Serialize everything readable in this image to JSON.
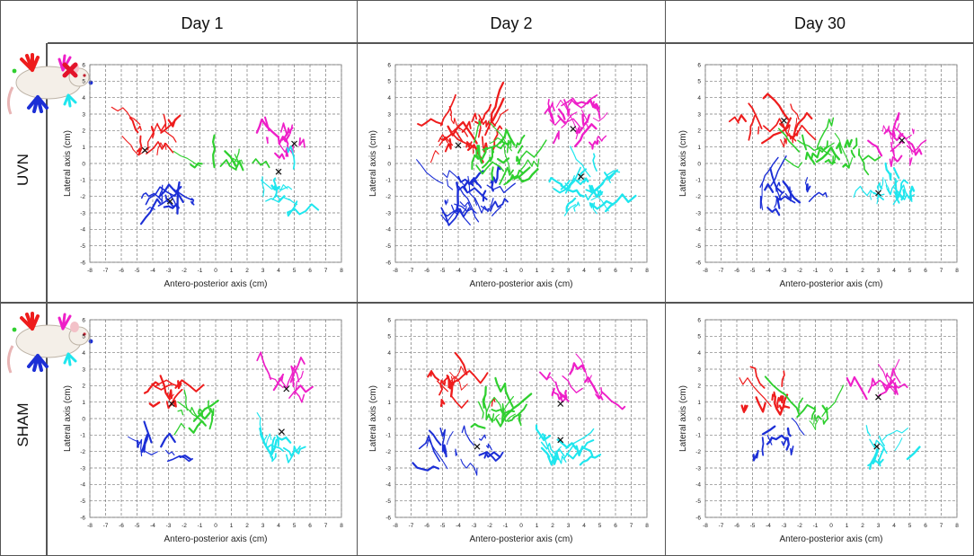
{
  "columns": [
    "Day 1",
    "Day 2",
    "Day 30"
  ],
  "rows": [
    "UVN",
    "SHAM"
  ],
  "colors": {
    "left_forepaw": "#ee1c1c",
    "right_forepaw": "#ee1fc8",
    "left_hindpaw": "#1c2fd6",
    "right_hindpaw": "#1fe6ee",
    "tail": "#2fcf2f",
    "lesion_marker": "#e3122a",
    "mean_marker": "#111111"
  },
  "icons": {
    "uvn_rat": "rat-with-lesion-cross-icon",
    "sham_rat": "rat-icon"
  },
  "chart_data": [
    {
      "id": "uvn-day1",
      "type": "scatter",
      "xlabel": "Antero-posterior axis (cm)",
      "ylabel": "Lateral axis (cm)",
      "xlim": [
        -8,
        8
      ],
      "ylim": [
        -6,
        6
      ],
      "xticks": [
        -8,
        -7,
        -6,
        -5,
        -4,
        -3,
        -2,
        -1,
        0,
        1,
        2,
        3,
        4,
        5,
        6,
        7,
        8
      ],
      "yticks": [
        -6,
        -5,
        -4,
        -3,
        -2,
        -1,
        0,
        1,
        2,
        3,
        4,
        5,
        6
      ],
      "grid": true,
      "series": [
        {
          "color": "#ee1c1c",
          "cx": -3.8,
          "cy": 1.6,
          "sx": 1.3,
          "sy": 1.1,
          "n": 14,
          "mean": [
            -4.5,
            0.8
          ]
        },
        {
          "color": "#ee1fc8",
          "cx": 4.2,
          "cy": 1.4,
          "sx": 1.2,
          "sy": 1.0,
          "n": 12,
          "mean": [
            5.0,
            1.2
          ]
        },
        {
          "color": "#1c2fd6",
          "cx": -3.0,
          "cy": -2.3,
          "sx": 1.5,
          "sy": 0.9,
          "n": 14,
          "mean": [
            -2.9,
            -2.3
          ]
        },
        {
          "color": "#1fe6ee",
          "cx": 4.0,
          "cy": -1.6,
          "sx": 1.2,
          "sy": 1.4,
          "n": 12,
          "mean": [
            4.0,
            -0.5
          ]
        },
        {
          "color": "#2fcf2f",
          "cx": 0.5,
          "cy": -0.2,
          "sx": 2.2,
          "sy": 0.3,
          "n": 10
        }
      ]
    },
    {
      "id": "uvn-day2",
      "type": "scatter",
      "xlabel": "Antero-posterior axis (cm)",
      "ylabel": "Lateral axis (cm)",
      "xlim": [
        -8,
        8
      ],
      "ylim": [
        -6,
        6
      ],
      "xticks": [
        -8,
        -7,
        -6,
        -5,
        -4,
        -3,
        -2,
        -1,
        0,
        1,
        2,
        3,
        4,
        5,
        6,
        7,
        8
      ],
      "yticks": [
        -6,
        -5,
        -4,
        -3,
        -2,
        -1,
        0,
        1,
        2,
        3,
        4,
        5,
        6
      ],
      "grid": true,
      "series": [
        {
          "color": "#ee1c1c",
          "cx": -3.5,
          "cy": 1.8,
          "sx": 1.8,
          "sy": 1.3,
          "n": 26,
          "mean": [
            -4.0,
            1.1
          ]
        },
        {
          "color": "#ee1fc8",
          "cx": 3.5,
          "cy": 2.3,
          "sx": 1.6,
          "sy": 1.4,
          "n": 24,
          "mean": [
            3.3,
            2.1
          ]
        },
        {
          "color": "#1c2fd6",
          "cx": -3.5,
          "cy": -2.3,
          "sx": 1.8,
          "sy": 1.3,
          "n": 26
        },
        {
          "color": "#1fe6ee",
          "cx": 4.0,
          "cy": -1.8,
          "sx": 1.6,
          "sy": 1.4,
          "n": 24,
          "mean": [
            3.8,
            -0.8
          ]
        },
        {
          "color": "#2fcf2f",
          "cx": -1.5,
          "cy": 0.0,
          "sx": 1.5,
          "sy": 1.3,
          "n": 26
        }
      ]
    },
    {
      "id": "uvn-day30",
      "type": "scatter",
      "xlabel": "Antero-posterior axis (cm)",
      "ylabel": "Lateral axis (cm)",
      "xlim": [
        -8,
        8
      ],
      "ylim": [
        -6,
        6
      ],
      "xticks": [
        -8,
        -7,
        -6,
        -5,
        -4,
        -3,
        -2,
        -1,
        0,
        1,
        2,
        3,
        4,
        5,
        6,
        7,
        8
      ],
      "yticks": [
        -6,
        -5,
        -4,
        -3,
        -2,
        -1,
        0,
        1,
        2,
        3,
        4,
        5,
        6
      ],
      "grid": true,
      "series": [
        {
          "color": "#ee1c1c",
          "cx": -4.0,
          "cy": 2.0,
          "sx": 2.0,
          "sy": 0.8,
          "n": 16,
          "mean": [
            -3.0,
            2.6
          ]
        },
        {
          "color": "#ee1fc8",
          "cx": 4.2,
          "cy": 1.2,
          "sx": 2.2,
          "sy": 0.9,
          "n": 16,
          "mean": [
            4.5,
            1.4
          ]
        },
        {
          "color": "#1c2fd6",
          "cx": -3.0,
          "cy": -2.0,
          "sx": 2.2,
          "sy": 0.9,
          "n": 18
        },
        {
          "color": "#1fe6ee",
          "cx": 4.0,
          "cy": -1.6,
          "sx": 1.6,
          "sy": 1.0,
          "n": 18,
          "mean": [
            3.0,
            -1.8
          ]
        },
        {
          "color": "#2fcf2f",
          "cx": 0.0,
          "cy": 0.4,
          "sx": 2.2,
          "sy": 0.6,
          "n": 20
        }
      ]
    },
    {
      "id": "sham-day1",
      "type": "scatter",
      "xlabel": "Antero-posterior axis (cm)",
      "ylabel": "Lateral axis (cm)",
      "xlim": [
        -8,
        8
      ],
      "ylim": [
        -6,
        6
      ],
      "xticks": [
        -8,
        -7,
        -6,
        -5,
        -4,
        -3,
        -2,
        -1,
        0,
        1,
        2,
        3,
        4,
        5,
        6,
        7,
        8
      ],
      "yticks": [
        -6,
        -5,
        -4,
        -3,
        -2,
        -1,
        0,
        1,
        2,
        3,
        4,
        5,
        6
      ],
      "grid": true,
      "series": [
        {
          "color": "#ee1c1c",
          "cx": -3.3,
          "cy": 1.5,
          "sx": 1.3,
          "sy": 0.8,
          "n": 10,
          "mean": [
            -2.8,
            0.9
          ]
        },
        {
          "color": "#ee1fc8",
          "cx": 4.3,
          "cy": 1.9,
          "sx": 1.0,
          "sy": 0.8,
          "n": 10,
          "mean": [
            4.5,
            1.8
          ]
        },
        {
          "color": "#1c2fd6",
          "cx": -3.8,
          "cy": -2.0,
          "sx": 1.6,
          "sy": 0.6,
          "n": 10
        },
        {
          "color": "#1fe6ee",
          "cx": 3.3,
          "cy": -1.6,
          "sx": 1.5,
          "sy": 0.8,
          "n": 10,
          "mean": [
            4.2,
            -0.8
          ]
        },
        {
          "color": "#2fcf2f",
          "cx": -1.2,
          "cy": 0.0,
          "sx": 1.2,
          "sy": 0.7,
          "n": 12
        }
      ]
    },
    {
      "id": "sham-day2",
      "type": "scatter",
      "xlabel": "Antero-posterior axis (cm)",
      "ylabel": "Lateral axis (cm)",
      "xlim": [
        -8,
        8
      ],
      "ylim": [
        -6,
        6
      ],
      "xticks": [
        -8,
        -7,
        -6,
        -5,
        -4,
        -3,
        -2,
        -1,
        0,
        1,
        2,
        3,
        4,
        5,
        6,
        7,
        8
      ],
      "yticks": [
        -6,
        -5,
        -4,
        -3,
        -2,
        -1,
        0,
        1,
        2,
        3,
        4,
        5,
        6
      ],
      "grid": true,
      "series": [
        {
          "color": "#ee1c1c",
          "cx": -3.5,
          "cy": 1.8,
          "sx": 1.8,
          "sy": 1.1,
          "n": 14
        },
        {
          "color": "#ee1fc8",
          "cx": 3.5,
          "cy": 1.8,
          "sx": 1.8,
          "sy": 1.1,
          "n": 14,
          "mean": [
            2.5,
            0.9
          ]
        },
        {
          "color": "#1c2fd6",
          "cx": -3.8,
          "cy": -2.0,
          "sx": 1.8,
          "sy": 1.1,
          "n": 14,
          "mean": [
            -2.8,
            -1.7
          ]
        },
        {
          "color": "#1fe6ee",
          "cx": 3.0,
          "cy": -2.0,
          "sx": 1.6,
          "sy": 1.1,
          "n": 14,
          "mean": [
            2.5,
            -1.3
          ]
        },
        {
          "color": "#2fcf2f",
          "cx": -1.3,
          "cy": 0.1,
          "sx": 1.3,
          "sy": 0.7,
          "n": 14
        }
      ]
    },
    {
      "id": "sham-day30",
      "type": "scatter",
      "xlabel": "Antero-posterior axis (cm)",
      "ylabel": "Lateral axis (cm)",
      "xlim": [
        -8,
        8
      ],
      "ylim": [
        -6,
        6
      ],
      "xticks": [
        -8,
        -7,
        -6,
        -5,
        -4,
        -3,
        -2,
        -1,
        0,
        1,
        2,
        3,
        4,
        5,
        6,
        7,
        8
      ],
      "yticks": [
        -6,
        -5,
        -4,
        -3,
        -2,
        -1,
        0,
        1,
        2,
        3,
        4,
        5,
        6
      ],
      "grid": true,
      "series": [
        {
          "color": "#ee1c1c",
          "cx": -4.0,
          "cy": 1.4,
          "sx": 1.4,
          "sy": 0.9,
          "n": 10
        },
        {
          "color": "#ee1fc8",
          "cx": 3.6,
          "cy": 1.8,
          "sx": 1.4,
          "sy": 0.9,
          "n": 10,
          "mean": [
            3.0,
            1.3
          ]
        },
        {
          "color": "#1c2fd6",
          "cx": -3.3,
          "cy": -1.6,
          "sx": 1.6,
          "sy": 0.7,
          "n": 10
        },
        {
          "color": "#1fe6ee",
          "cx": 3.6,
          "cy": -2.0,
          "sx": 1.3,
          "sy": 1.0,
          "n": 10,
          "mean": [
            2.9,
            -1.7
          ]
        },
        {
          "color": "#2fcf2f",
          "cx": -1.3,
          "cy": 0.1,
          "sx": 1.1,
          "sy": 0.5,
          "n": 10
        }
      ]
    }
  ]
}
